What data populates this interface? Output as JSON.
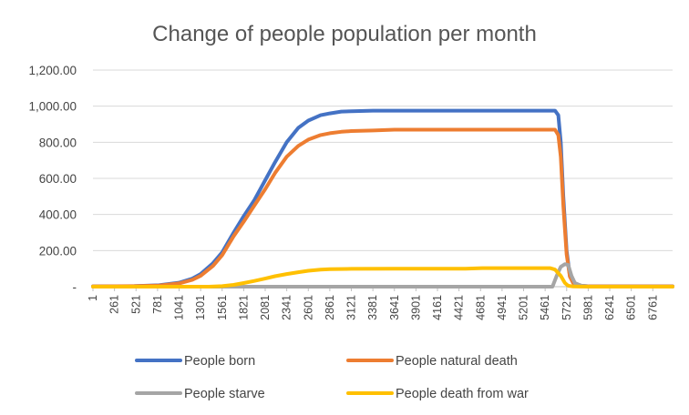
{
  "chart_data": {
    "type": "line",
    "title": "Change of people population per month",
    "xlabel": "",
    "ylabel": "",
    "xlim": [
      1,
      7000
    ],
    "ylim": [
      0,
      1200
    ],
    "yticks": [
      {
        "value": 0,
        "label": "-"
      },
      {
        "value": 200,
        "label": "200.00"
      },
      {
        "value": 400,
        "label": "400.00"
      },
      {
        "value": 600,
        "label": "600.00"
      },
      {
        "value": 800,
        "label": "800.00"
      },
      {
        "value": 1000,
        "label": "1,000.00"
      },
      {
        "value": 1200,
        "label": "1,200.00"
      }
    ],
    "xticks": [
      1,
      261,
      521,
      781,
      1041,
      1301,
      1561,
      1821,
      2081,
      2341,
      2601,
      2861,
      3121,
      3381,
      3641,
      3901,
      4161,
      4421,
      4681,
      4941,
      5201,
      5461,
      5721,
      5981,
      6241,
      6501,
      6761
    ],
    "grid": true,
    "legend_position": "bottom",
    "series": [
      {
        "name": "People born",
        "color": "#4472C4",
        "points": [
          [
            1,
            2
          ],
          [
            500,
            3
          ],
          [
            800,
            8
          ],
          [
            1041,
            22
          ],
          [
            1200,
            45
          ],
          [
            1301,
            70
          ],
          [
            1450,
            130
          ],
          [
            1561,
            190
          ],
          [
            1700,
            300
          ],
          [
            1821,
            390
          ],
          [
            1950,
            480
          ],
          [
            2081,
            590
          ],
          [
            2200,
            690
          ],
          [
            2341,
            800
          ],
          [
            2480,
            880
          ],
          [
            2601,
            920
          ],
          [
            2750,
            950
          ],
          [
            2861,
            960
          ],
          [
            3000,
            970
          ],
          [
            3121,
            972
          ],
          [
            3381,
            975
          ],
          [
            3641,
            975
          ],
          [
            4500,
            975
          ],
          [
            5400,
            975
          ],
          [
            5580,
            975
          ],
          [
            5620,
            950
          ],
          [
            5650,
            800
          ],
          [
            5680,
            500
          ],
          [
            5720,
            200
          ],
          [
            5760,
            60
          ],
          [
            5800,
            20
          ],
          [
            5900,
            5
          ],
          [
            6000,
            2
          ],
          [
            7000,
            2
          ]
        ]
      },
      {
        "name": "People natural death",
        "color": "#ED7D31",
        "points": [
          [
            1,
            2
          ],
          [
            500,
            3
          ],
          [
            800,
            6
          ],
          [
            1041,
            18
          ],
          [
            1200,
            38
          ],
          [
            1301,
            60
          ],
          [
            1450,
            115
          ],
          [
            1561,
            175
          ],
          [
            1700,
            280
          ],
          [
            1821,
            360
          ],
          [
            1950,
            450
          ],
          [
            2081,
            540
          ],
          [
            2200,
            630
          ],
          [
            2341,
            720
          ],
          [
            2480,
            780
          ],
          [
            2601,
            815
          ],
          [
            2750,
            840
          ],
          [
            2861,
            850
          ],
          [
            3000,
            858
          ],
          [
            3121,
            862
          ],
          [
            3381,
            865
          ],
          [
            3641,
            870
          ],
          [
            4500,
            870
          ],
          [
            5400,
            870
          ],
          [
            5580,
            870
          ],
          [
            5620,
            840
          ],
          [
            5650,
            720
          ],
          [
            5680,
            450
          ],
          [
            5720,
            180
          ],
          [
            5760,
            55
          ],
          [
            5800,
            20
          ],
          [
            5900,
            5
          ],
          [
            6000,
            2
          ],
          [
            7000,
            2
          ]
        ]
      },
      {
        "name": "People starve",
        "color": "#A5A5A5",
        "points": [
          [
            1,
            0
          ],
          [
            5550,
            0
          ],
          [
            5600,
            60
          ],
          [
            5650,
            110
          ],
          [
            5700,
            125
          ],
          [
            5740,
            120
          ],
          [
            5780,
            60
          ],
          [
            5820,
            20
          ],
          [
            5900,
            5
          ],
          [
            6000,
            0
          ],
          [
            7000,
            0
          ]
        ]
      },
      {
        "name": "People death from war",
        "color": "#FFC000",
        "points": [
          [
            1,
            0
          ],
          [
            1400,
            0
          ],
          [
            1561,
            3
          ],
          [
            1700,
            10
          ],
          [
            1821,
            20
          ],
          [
            1950,
            32
          ],
          [
            2081,
            45
          ],
          [
            2200,
            58
          ],
          [
            2341,
            70
          ],
          [
            2480,
            80
          ],
          [
            2601,
            88
          ],
          [
            2750,
            95
          ],
          [
            2861,
            97
          ],
          [
            3121,
            99
          ],
          [
            3641,
            100
          ],
          [
            4500,
            100
          ],
          [
            4700,
            103
          ],
          [
            5400,
            103
          ],
          [
            5520,
            103
          ],
          [
            5580,
            95
          ],
          [
            5650,
            60
          ],
          [
            5700,
            20
          ],
          [
            5740,
            5
          ],
          [
            5800,
            1
          ],
          [
            6000,
            0
          ],
          [
            7000,
            0
          ]
        ]
      }
    ]
  }
}
